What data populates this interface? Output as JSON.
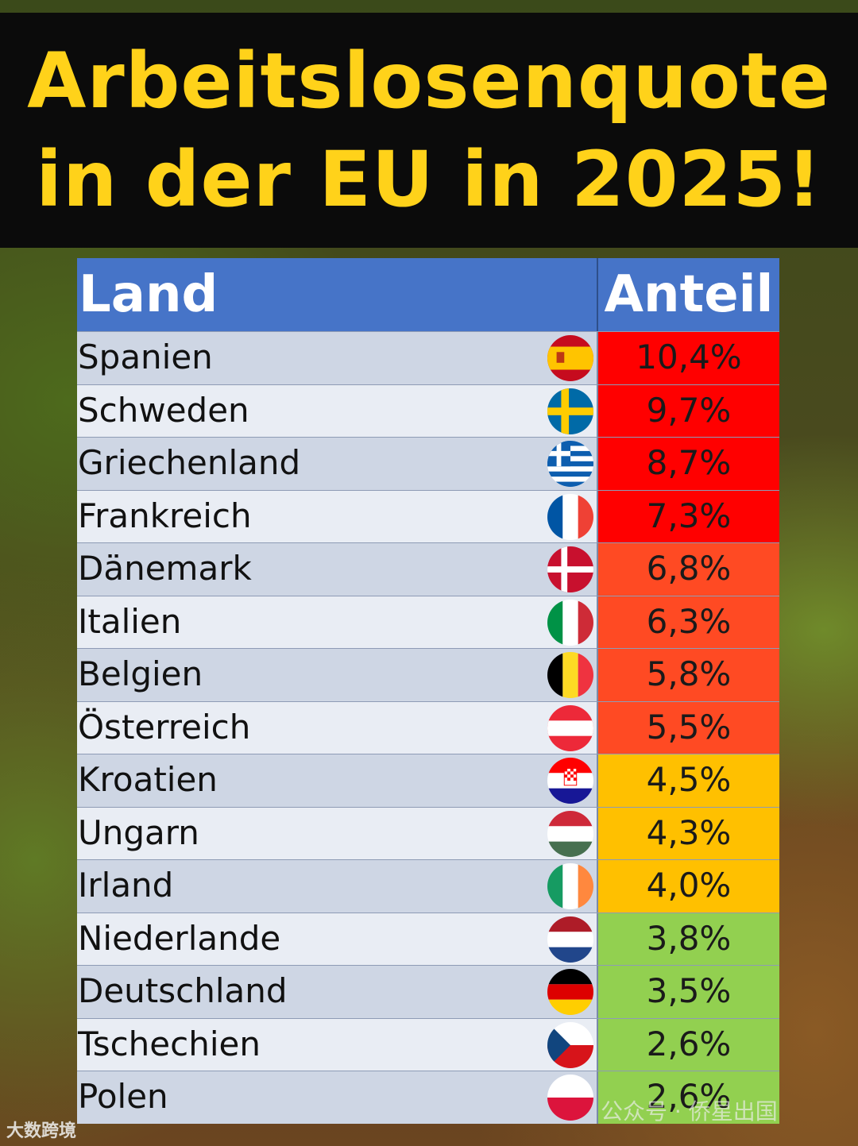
{
  "chart_data": {
    "type": "table",
    "title_line1": "Arbeitslosenquote",
    "title_line2": "in der EU in 2025!",
    "columns": [
      "Land",
      "Anteil"
    ],
    "rows": [
      {
        "country": "Spanien",
        "value": "10,4%",
        "flag": "spain-flag-icon",
        "color": "#ff0000"
      },
      {
        "country": "Schweden",
        "value": "9,7%",
        "flag": "sweden-flag-icon",
        "color": "#ff0000"
      },
      {
        "country": "Griechenland",
        "value": "8,7%",
        "flag": "greece-flag-icon",
        "color": "#ff0000"
      },
      {
        "country": "Frankreich",
        "value": "7,3%",
        "flag": "france-flag-icon",
        "color": "#ff0000"
      },
      {
        "country": "Dänemark",
        "value": "6,8%",
        "flag": "denmark-flag-icon",
        "color": "#ff4a23"
      },
      {
        "country": "Italien",
        "value": "6,3%",
        "flag": "italy-flag-icon",
        "color": "#ff4a23"
      },
      {
        "country": "Belgien",
        "value": "5,8%",
        "flag": "belgium-flag-icon",
        "color": "#ff4a23"
      },
      {
        "country": "Österreich",
        "value": "5,5%",
        "flag": "austria-flag-icon",
        "color": "#ff4a23"
      },
      {
        "country": "Kroatien",
        "value": "4,5%",
        "flag": "croatia-flag-icon",
        "color": "#ffc000"
      },
      {
        "country": "Ungarn",
        "value": "4,3%",
        "flag": "hungary-flag-icon",
        "color": "#ffc000"
      },
      {
        "country": "Irland",
        "value": "4,0%",
        "flag": "ireland-flag-icon",
        "color": "#ffc000"
      },
      {
        "country": "Niederlande",
        "value": "3,8%",
        "flag": "netherlands-flag-icon",
        "color": "#92d050"
      },
      {
        "country": "Deutschland",
        "value": "3,5%",
        "flag": "germany-flag-icon",
        "color": "#92d050"
      },
      {
        "country": "Tschechien",
        "value": "2,6%",
        "flag": "czechia-flag-icon",
        "color": "#92d050"
      },
      {
        "country": "Polen",
        "value": "2,6%",
        "flag": "poland-flag-icon",
        "color": "#92d050"
      }
    ]
  },
  "watermarks": {
    "left": "大数跨境",
    "right": "公众号 · 侨星出国"
  },
  "colors": {
    "title": "#ffd21a",
    "header": "#4674c8"
  }
}
